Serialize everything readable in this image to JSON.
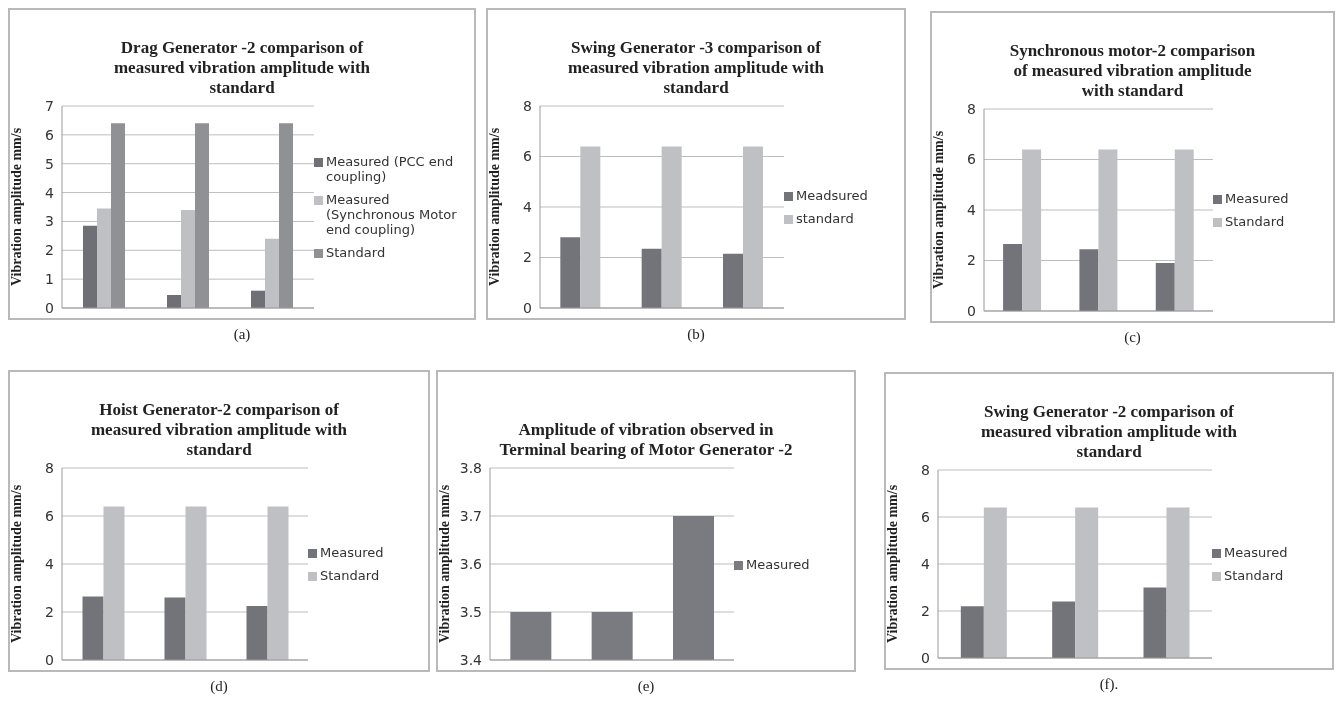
{
  "chart_data": [
    {
      "type": "bar",
      "title": "Drag Generator -2 comparison of measured vibration amplitude with standard",
      "ylabel": "Vibration amplitude mm/s",
      "categories": [
        null,
        null,
        null
      ],
      "series": [
        {
          "name": "Measured (PCC end coupling)",
          "color": "#6f7075",
          "values": [
            2.85,
            0.45,
            0.6
          ]
        },
        {
          "name": "Measured (Synchronous Motor end coupling)",
          "color": "#bfc0c3",
          "values": [
            3.45,
            3.4,
            2.4
          ]
        },
        {
          "name": "Standard",
          "color": "#909195",
          "values": [
            6.4,
            6.4,
            6.4
          ]
        }
      ],
      "ylim": [
        0,
        7
      ],
      "yticks": [
        0,
        1,
        2,
        3,
        4,
        5,
        6,
        7
      ],
      "grid": "y",
      "legend": "right",
      "annotations": [
        "(a)"
      ]
    },
    {
      "type": "bar",
      "title": "Swing Generator -3 comparison of measured vibration amplitude with standard",
      "ylabel": "Vibration amplitude mm/s",
      "categories": [
        null,
        null,
        null
      ],
      "series": [
        {
          "name": "Meadsured",
          "color": "#737479",
          "values": [
            2.8,
            2.35,
            2.15
          ]
        },
        {
          "name": "standard",
          "color": "#bfc0c3",
          "values": [
            6.4,
            6.4,
            6.4
          ]
        }
      ],
      "ylim": [
        0,
        8
      ],
      "yticks": [
        0,
        2,
        4,
        6,
        8
      ],
      "grid": "y",
      "legend": "right",
      "annotations": [
        "(b)"
      ]
    },
    {
      "type": "bar",
      "title": "Synchronous motor-2 comparison of measured vibration amplitude with standard",
      "ylabel": "Vibration amplitude mm/s",
      "categories": [
        null,
        null,
        null
      ],
      "series": [
        {
          "name": "Measured",
          "color": "#737479",
          "values": [
            2.65,
            2.45,
            1.9
          ]
        },
        {
          "name": "Standard",
          "color": "#bfc0c3",
          "values": [
            6.4,
            6.4,
            6.4
          ]
        }
      ],
      "ylim": [
        0,
        8
      ],
      "yticks": [
        0,
        2,
        4,
        6,
        8
      ],
      "grid": "y",
      "legend": "right",
      "annotations": [
        "(c)"
      ]
    },
    {
      "type": "bar",
      "title": "Hoist Generator-2 comparison of measured vibration amplitude with standard",
      "ylabel": "Vibration amplitude mm/s",
      "categories": [
        null,
        null,
        null
      ],
      "series": [
        {
          "name": "Measured",
          "color": "#737479",
          "values": [
            2.65,
            2.6,
            2.25
          ]
        },
        {
          "name": "Standard",
          "color": "#bfc0c3",
          "values": [
            6.4,
            6.4,
            6.4
          ]
        }
      ],
      "ylim": [
        0,
        8
      ],
      "yticks": [
        0,
        2,
        4,
        6,
        8
      ],
      "grid": "y",
      "legend": "right",
      "annotations": [
        "(d)"
      ]
    },
    {
      "type": "bar",
      "title": "Amplitude of vibration observed in Terminal bearing of Motor Generator -2",
      "ylabel": "Vibration amplitude mm/s",
      "categories": [
        null,
        null,
        null
      ],
      "series": [
        {
          "name": "Measured",
          "color": "#7a7b80",
          "values": [
            3.5,
            3.5,
            3.7
          ]
        }
      ],
      "ylim": [
        3.4,
        3.8
      ],
      "yticks": [
        3.4,
        3.5,
        3.6,
        3.7,
        3.8
      ],
      "grid": "y",
      "legend": "right",
      "annotations": [
        "(e)"
      ]
    },
    {
      "type": "bar",
      "title": "Swing Generator -2 comparison of measured vibration amplitude with standard",
      "ylabel": "Vibration amplitude mm/s",
      "categories": [
        null,
        null,
        null
      ],
      "series": [
        {
          "name": "Measured",
          "color": "#737479",
          "values": [
            2.2,
            2.4,
            3.0
          ]
        },
        {
          "name": "Standard",
          "color": "#bfc0c3",
          "values": [
            6.4,
            6.4,
            6.4
          ]
        }
      ],
      "ylim": [
        0,
        8
      ],
      "yticks": [
        0,
        2,
        4,
        6,
        8
      ],
      "grid": "y",
      "legend": "right",
      "annotations": [
        "(f)."
      ]
    }
  ]
}
